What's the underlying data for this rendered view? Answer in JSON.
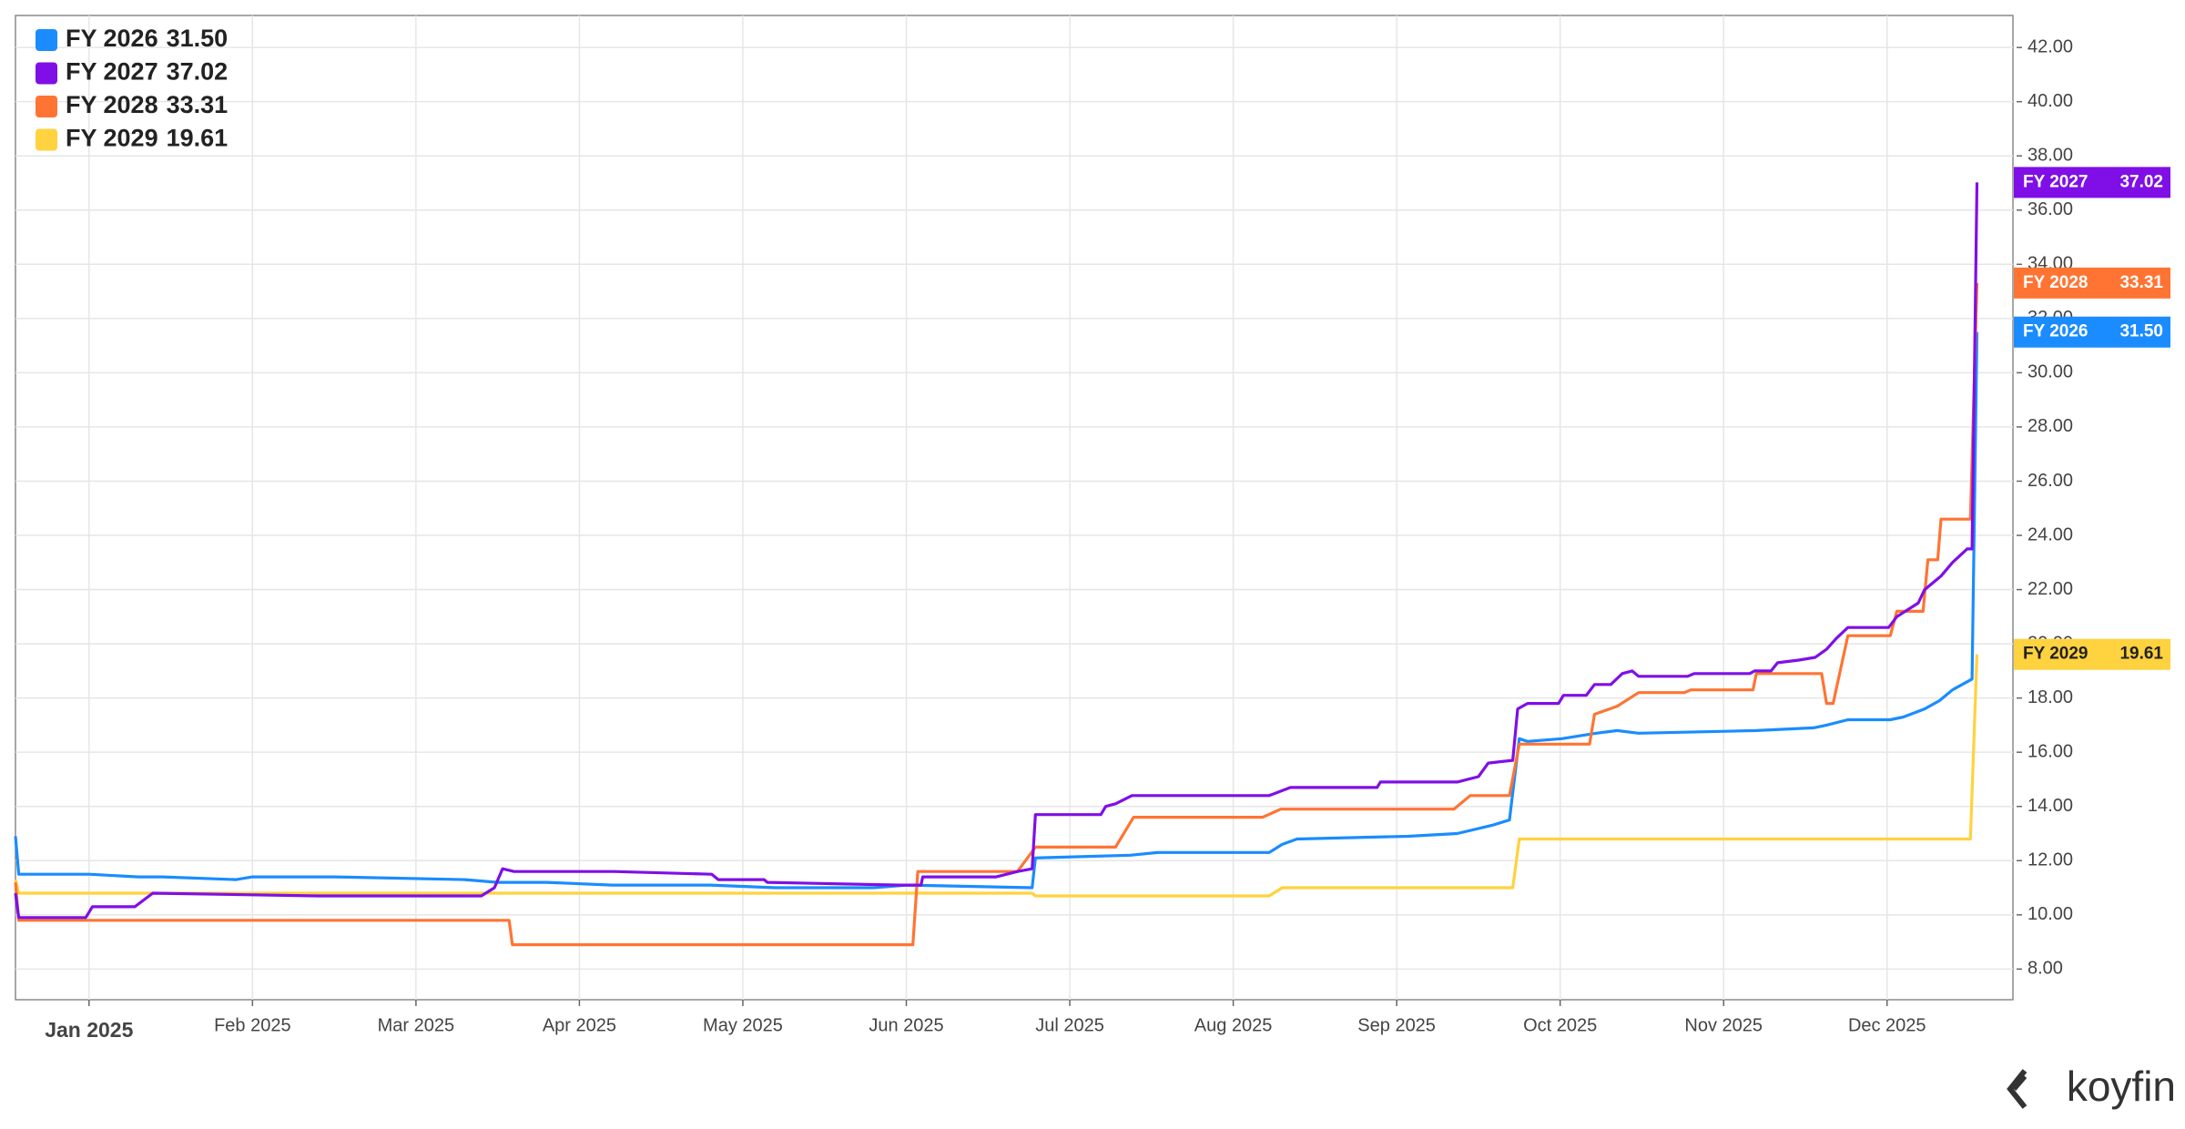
{
  "chart_data": {
    "type": "line",
    "brand": "koyfin",
    "xlim": [
      -0.45,
      11.77
    ],
    "ylim": [
      6.87,
      43.18
    ],
    "xticks": [
      {
        "value": 0,
        "label": "Jan 2025"
      },
      {
        "value": 1,
        "label": "Feb 2025"
      },
      {
        "value": 2,
        "label": "Mar 2025"
      },
      {
        "value": 3,
        "label": "Apr 2025"
      },
      {
        "value": 4,
        "label": "May 2025"
      },
      {
        "value": 5,
        "label": "Jun 2025"
      },
      {
        "value": 6,
        "label": "Jul 2025"
      },
      {
        "value": 7,
        "label": "Aug 2025"
      },
      {
        "value": 8,
        "label": "Sep 2025"
      },
      {
        "value": 9,
        "label": "Oct 2025"
      },
      {
        "value": 10,
        "label": "Nov 2025"
      },
      {
        "value": 11,
        "label": "Dec 2025"
      }
    ],
    "yticks": [
      {
        "value": 8,
        "label": "8.00"
      },
      {
        "value": 10,
        "label": "10.00"
      },
      {
        "value": 12,
        "label": "12.00"
      },
      {
        "value": 14,
        "label": "14.00"
      },
      {
        "value": 16,
        "label": "16.00"
      },
      {
        "value": 18,
        "label": "18.00"
      },
      {
        "value": 20,
        "label": "20.00"
      },
      {
        "value": 22,
        "label": "22.00"
      },
      {
        "value": 24,
        "label": "24.00"
      },
      {
        "value": 26,
        "label": "26.00"
      },
      {
        "value": 28,
        "label": "28.00"
      },
      {
        "value": 30,
        "label": "30.00"
      },
      {
        "value": 32,
        "label": "32.00"
      },
      {
        "value": 34,
        "label": "34.00"
      },
      {
        "value": 36,
        "label": "36.00"
      },
      {
        "value": 38,
        "label": "38.00"
      },
      {
        "value": 40,
        "label": "40.00"
      },
      {
        "value": 42,
        "label": "42.00"
      }
    ],
    "grid": true,
    "legend": "top-left",
    "series": [
      {
        "name": "FY 2026",
        "color": "#1a8cff",
        "x": [
          -0.45,
          -0.43,
          0,
          0.3,
          0.45,
          0.9,
          1.0,
          1.5,
          2.3,
          2.5,
          2.8,
          3.2,
          3.8,
          4.2,
          4.8,
          5.0,
          5.77,
          5.79,
          6.37,
          6.54,
          7.22,
          7.3,
          7.39,
          8.07,
          8.37,
          8.58,
          8.69,
          8.75,
          8.8,
          9.01,
          9.22,
          9.35,
          9.48,
          10.2,
          10.55,
          10.63,
          10.76,
          11.02,
          11.1,
          11.23,
          11.32,
          11.4,
          11.49,
          11.52,
          11.55
        ],
        "values": [
          12.9,
          11.5,
          11.5,
          11.4,
          11.4,
          11.3,
          11.4,
          11.4,
          11.3,
          11.2,
          11.2,
          11.1,
          11.1,
          11.0,
          11.0,
          11.1,
          11.0,
          12.1,
          12.2,
          12.3,
          12.3,
          12.6,
          12.8,
          12.9,
          13.0,
          13.3,
          13.5,
          16.5,
          16.4,
          16.5,
          16.7,
          16.8,
          16.7,
          16.8,
          16.9,
          17.0,
          17.2,
          17.2,
          17.3,
          17.6,
          17.9,
          18.3,
          18.6,
          18.7,
          31.5
        ],
        "value_labels": [
          null,
          null,
          null,
          null,
          null,
          null,
          null,
          null,
          null,
          null,
          null,
          null,
          null,
          null,
          null,
          null,
          null,
          null,
          null,
          null,
          null,
          null,
          null,
          null,
          null,
          null,
          null,
          null,
          null,
          null,
          null,
          null,
          null,
          null,
          null,
          null,
          null,
          null,
          null,
          null,
          null,
          null,
          null,
          null,
          "31.50"
        ]
      },
      {
        "name": "FY 2027",
        "color": "#7f0fe6",
        "x": [
          -0.45,
          -0.43,
          -0.02,
          0.02,
          0.28,
          0.39,
          1.4,
          2.4,
          2.48,
          2.53,
          2.6,
          3.21,
          3.81,
          3.85,
          4.13,
          4.15,
          4.96,
          5.09,
          5.1,
          5.55,
          5.68,
          5.77,
          5.79,
          6.19,
          6.22,
          6.28,
          6.38,
          7.22,
          7.35,
          7.88,
          7.9,
          8.37,
          8.5,
          8.56,
          8.71,
          8.74,
          8.8,
          8.99,
          9.02,
          9.16,
          9.21,
          9.31,
          9.38,
          9.44,
          9.48,
          9.78,
          9.82,
          10.16,
          10.19,
          10.29,
          10.33,
          10.46,
          10.56,
          10.63,
          10.69,
          10.76,
          11.01,
          11.06,
          11.19,
          11.23,
          11.33,
          11.4,
          11.49,
          11.52,
          11.55
        ],
        "values": [
          10.8,
          9.9,
          9.9,
          10.3,
          10.3,
          10.8,
          10.7,
          10.7,
          11.0,
          11.7,
          11.6,
          11.6,
          11.5,
          11.3,
          11.3,
          11.2,
          11.1,
          11.1,
          11.4,
          11.4,
          11.6,
          11.7,
          13.7,
          13.7,
          14.0,
          14.1,
          14.4,
          14.4,
          14.7,
          14.7,
          14.9,
          14.9,
          15.1,
          15.6,
          15.7,
          17.6,
          17.8,
          17.8,
          18.1,
          18.1,
          18.5,
          18.5,
          18.9,
          19.0,
          18.8,
          18.8,
          18.9,
          18.9,
          19.0,
          19.0,
          19.3,
          19.4,
          19.5,
          19.8,
          20.2,
          20.6,
          20.6,
          21.0,
          21.5,
          22.0,
          22.5,
          23.0,
          23.5,
          23.5,
          37.02
        ],
        "value_labels": [
          null,
          null,
          null,
          null,
          null,
          null,
          null,
          null,
          null,
          null,
          null,
          null,
          null,
          null,
          null,
          null,
          null,
          null,
          null,
          null,
          null,
          null,
          null,
          null,
          null,
          null,
          null,
          null,
          null,
          null,
          null,
          null,
          null,
          null,
          null,
          null,
          null,
          null,
          null,
          null,
          null,
          null,
          null,
          null,
          null,
          null,
          null,
          null,
          null,
          null,
          null,
          null,
          null,
          null,
          null,
          null,
          null,
          null,
          null,
          null,
          null,
          null,
          null,
          null,
          "37.02"
        ]
      },
      {
        "name": "FY 2028",
        "color": "#ff7433",
        "x": [
          -0.45,
          -0.43,
          2.57,
          2.59,
          5.04,
          5.07,
          5.68,
          5.79,
          6.28,
          6.39,
          7.18,
          7.29,
          8.35,
          8.45,
          8.69,
          8.75,
          9.18,
          9.21,
          9.35,
          9.48,
          9.76,
          9.8,
          10.18,
          10.2,
          10.6,
          10.63,
          10.67,
          10.76,
          11.02,
          11.06,
          11.22,
          11.25,
          11.31,
          11.33,
          11.51,
          11.55
        ],
        "values": [
          11.2,
          9.8,
          9.8,
          8.9,
          8.9,
          11.6,
          11.6,
          12.5,
          12.5,
          13.6,
          13.6,
          13.9,
          13.9,
          14.4,
          14.4,
          16.3,
          16.3,
          17.4,
          17.7,
          18.2,
          18.2,
          18.3,
          18.3,
          18.9,
          18.9,
          17.8,
          17.8,
          20.3,
          20.3,
          21.2,
          21.2,
          23.1,
          23.1,
          24.6,
          24.6,
          33.31
        ],
        "value_labels": [
          null,
          null,
          null,
          null,
          null,
          null,
          null,
          null,
          null,
          null,
          null,
          null,
          null,
          null,
          null,
          null,
          null,
          null,
          null,
          null,
          null,
          null,
          null,
          null,
          null,
          null,
          null,
          null,
          null,
          null,
          null,
          null,
          null,
          null,
          null,
          "33.31"
        ]
      },
      {
        "name": "FY 2029",
        "color": "#ffd23f",
        "x": [
          -0.45,
          -0.43,
          5.77,
          5.79,
          7.22,
          7.3,
          8.71,
          8.75,
          11.51,
          11.55
        ],
        "values": [
          11.3,
          10.8,
          10.8,
          10.7,
          10.7,
          11.0,
          11.0,
          12.8,
          12.8,
          19.61
        ],
        "value_labels": [
          null,
          null,
          null,
          null,
          null,
          null,
          null,
          null,
          null,
          "19.61"
        ]
      }
    ]
  }
}
